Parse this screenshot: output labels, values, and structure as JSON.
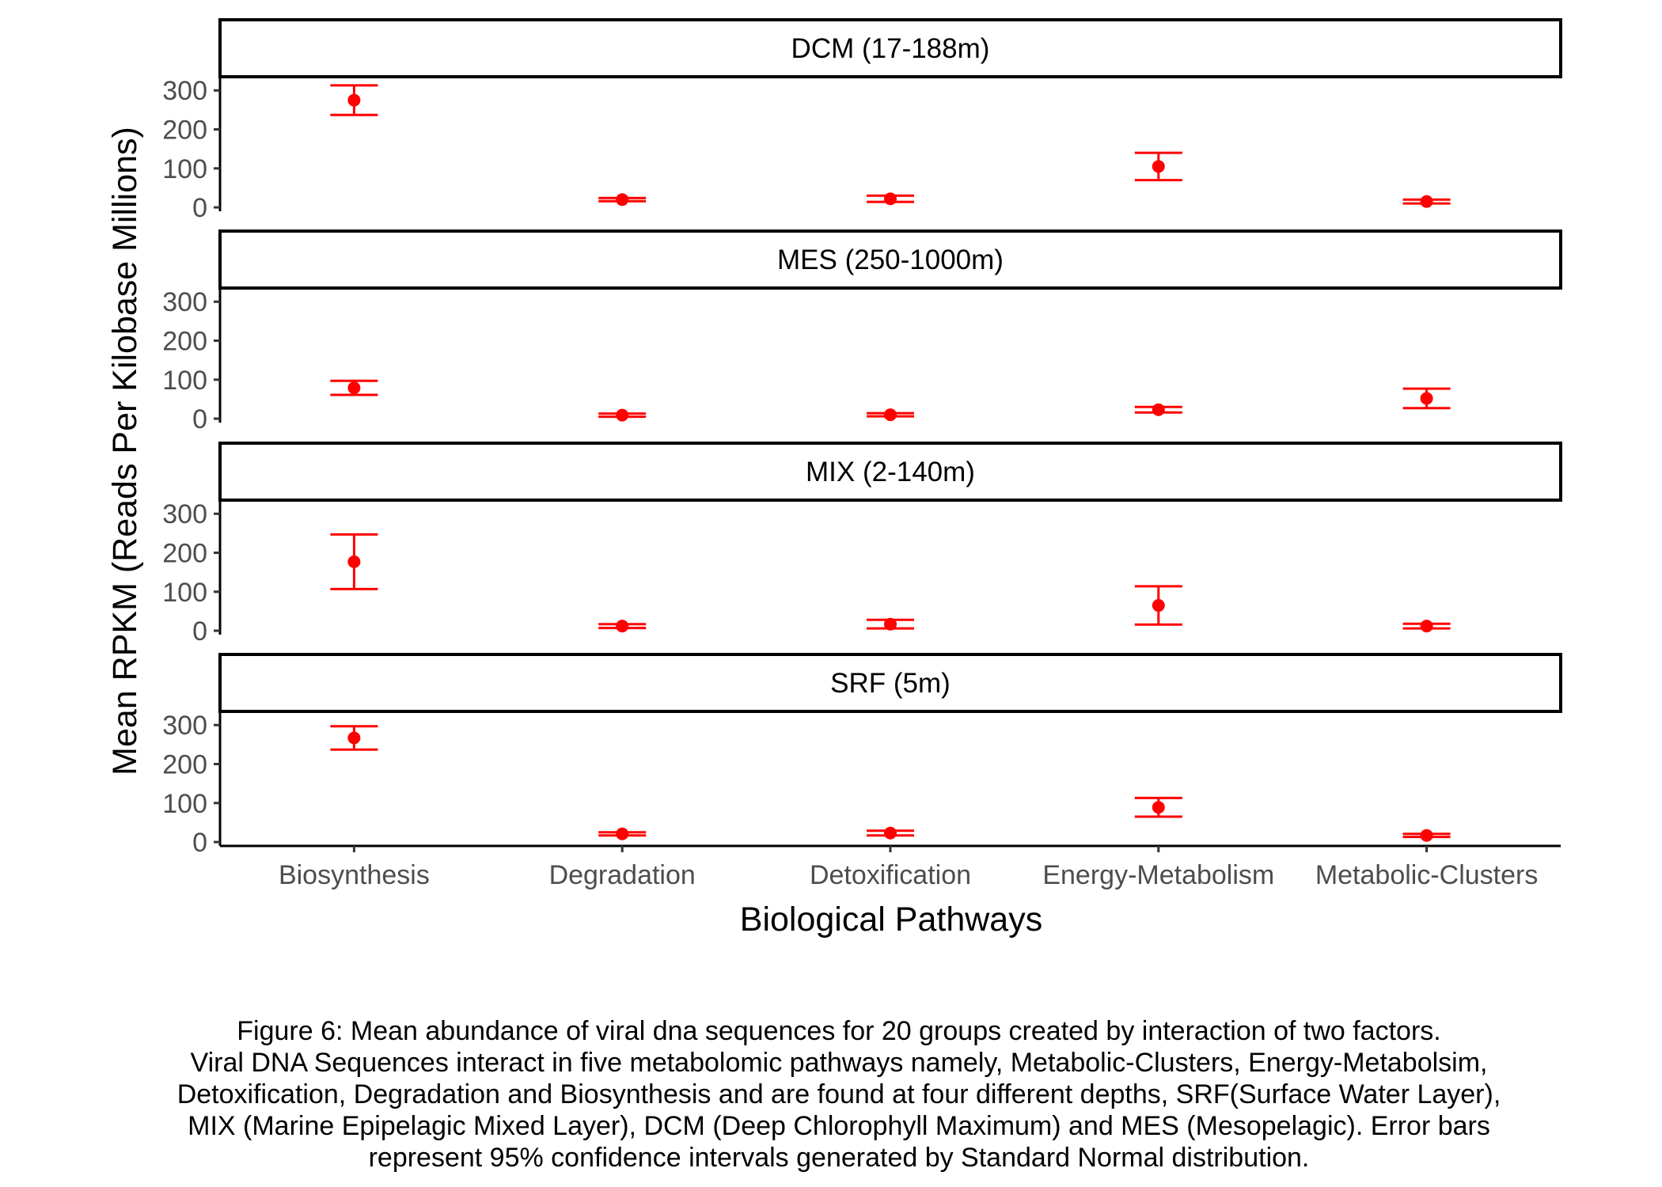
{
  "chart_data": {
    "type": "scatter",
    "subtype": "point-with-errorbars, faceted",
    "xlabel": "Biological Pathways",
    "ylabel": "Mean RPKM (Reads Per Kilobase Millions)",
    "categories": [
      "Biosynthesis",
      "Degradation",
      "Detoxification",
      "Energy-Metabolism",
      "Metabolic-Clusters"
    ],
    "ylim": [
      -10,
      335
    ],
    "yticks": [
      "0",
      "100",
      "200",
      "300"
    ],
    "grid": false,
    "marker_color": "#ff0000",
    "facets": [
      {
        "label": "DCM (17-188m)",
        "mean": [
          275,
          20,
          22,
          105,
          15
        ],
        "lower": [
          237,
          16,
          14,
          70,
          10
        ],
        "upper": [
          313,
          24,
          30,
          140,
          20
        ]
      },
      {
        "label": "MES (250-1000m)",
        "mean": [
          79,
          9,
          10,
          23,
          52
        ],
        "lower": [
          61,
          5,
          6,
          16,
          27
        ],
        "upper": [
          97,
          13,
          14,
          30,
          77
        ]
      },
      {
        "label": "MIX (2-140m)",
        "mean": [
          177,
          12,
          17,
          65,
          12
        ],
        "lower": [
          107,
          7,
          6,
          16,
          6
        ],
        "upper": [
          247,
          17,
          28,
          114,
          18
        ]
      },
      {
        "label": "SRF (5m)",
        "mean": [
          267,
          21,
          23,
          89,
          17
        ],
        "lower": [
          237,
          17,
          17,
          65,
          13
        ],
        "upper": [
          297,
          25,
          29,
          113,
          21
        ]
      }
    ]
  },
  "caption": {
    "lines": [
      "Figure 6: Mean abundance of viral dna sequences for 20 groups created by interaction of two factors.",
      "Viral DNA Sequences interact in five metabolomic pathways namely, Metabolic-Clusters, Energy-Metabolsim,",
      "Detoxification, Degradation and Biosynthesis and are found at four different depths, SRF(Surface Water Layer),",
      "MIX (Marine Epipelagic Mixed Layer), DCM (Deep Chlorophyll Maximum) and MES (Mesopelagic). Error bars",
      "represent 95% confidence intervals generated by Standard Normal distribution."
    ]
  }
}
